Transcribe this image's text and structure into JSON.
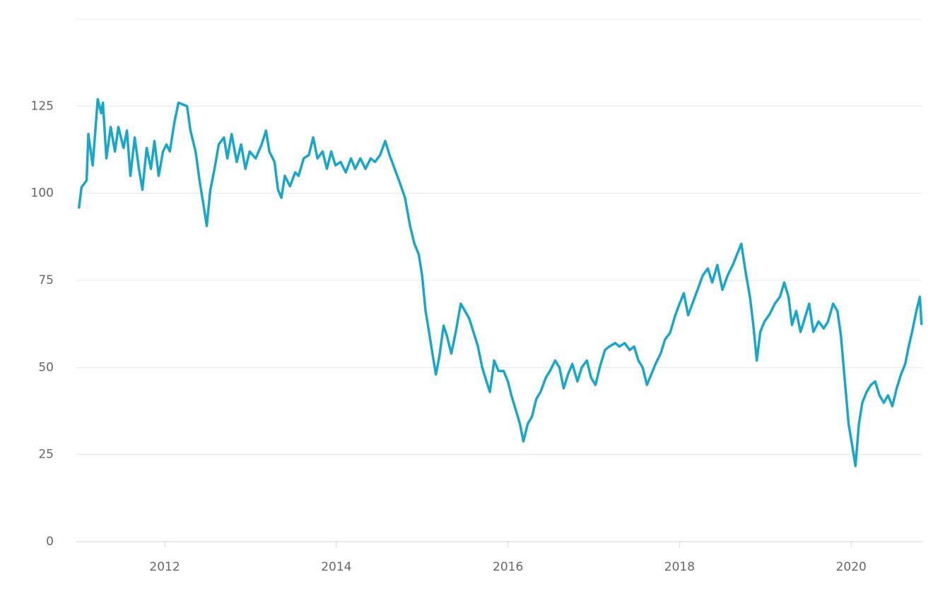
{
  "chart_data": {
    "type": "line",
    "color": "#1aa6c9",
    "grid": true,
    "xlim": [
      2010.97,
      2020.83
    ],
    "xticks": [
      2012,
      2014,
      2016,
      2018,
      2020
    ],
    "ylim": [
      0,
      150
    ],
    "yticks": [
      0,
      25,
      50,
      75,
      100,
      125
    ],
    "x": [
      2011.0,
      2011.03,
      2011.09,
      2011.11,
      2011.16,
      2011.22,
      2011.26,
      2011.28,
      2011.32,
      2011.37,
      2011.42,
      2011.46,
      2011.52,
      2011.56,
      2011.6,
      2011.65,
      2011.7,
      2011.74,
      2011.79,
      2011.84,
      2011.88,
      2011.93,
      2011.98,
      2012.02,
      2012.06,
      2012.11,
      2012.16,
      2012.21,
      2012.26,
      2012.3,
      2012.36,
      2012.41,
      2012.45,
      2012.49,
      2012.53,
      2012.58,
      2012.63,
      2012.69,
      2012.73,
      2012.78,
      2012.84,
      2012.89,
      2012.94,
      2012.99,
      2013.06,
      2013.13,
      2013.18,
      2013.22,
      2013.28,
      2013.32,
      2013.36,
      2013.4,
      2013.46,
      2013.52,
      2013.56,
      2013.62,
      2013.68,
      2013.73,
      2013.78,
      2013.84,
      2013.89,
      2013.94,
      2013.99,
      2014.05,
      2014.11,
      2014.17,
      2014.22,
      2014.28,
      2014.34,
      2014.4,
      2014.45,
      2014.51,
      2014.57,
      2014.62,
      2014.68,
      2014.74,
      2014.8,
      2014.86,
      2014.91,
      2014.96,
      2015.0,
      2015.04,
      2015.08,
      2015.12,
      2015.16,
      2015.2,
      2015.25,
      2015.29,
      2015.34,
      2015.39,
      2015.45,
      2015.5,
      2015.55,
      2015.6,
      2015.65,
      2015.7,
      2015.75,
      2015.79,
      2015.84,
      2015.89,
      2015.95,
      2016.0,
      2016.04,
      2016.09,
      2016.14,
      2016.18,
      2016.23,
      2016.28,
      2016.33,
      2016.38,
      2016.44,
      2016.49,
      2016.55,
      2016.6,
      2016.65,
      2016.7,
      2016.75,
      2016.81,
      2016.86,
      2016.92,
      2016.97,
      2017.02,
      2017.07,
      2017.13,
      2017.18,
      2017.25,
      2017.3,
      2017.36,
      2017.42,
      2017.47,
      2017.52,
      2017.57,
      2017.62,
      2017.67,
      2017.72,
      2017.78,
      2017.83,
      2017.89,
      2017.95,
      2018.0,
      2018.05,
      2018.1,
      2018.15,
      2018.21,
      2018.27,
      2018.33,
      2018.38,
      2018.44,
      2018.5,
      2018.56,
      2018.62,
      2018.67,
      2018.72,
      2018.77,
      2018.82,
      2018.86,
      2018.9,
      2018.94,
      2018.99,
      2019.05,
      2019.11,
      2019.17,
      2019.22,
      2019.27,
      2019.31,
      2019.36,
      2019.41,
      2019.46,
      2019.51,
      2019.56,
      2019.62,
      2019.68,
      2019.73,
      2019.79,
      2019.84,
      2019.88,
      2019.92,
      2019.97,
      2020.01,
      2020.05,
      2020.09,
      2020.13,
      2020.18,
      2020.23,
      2020.28,
      2020.33,
      2020.38,
      2020.43,
      2020.48,
      2020.53,
      2020.58,
      2020.63,
      2020.67,
      2020.71,
      2020.76,
      2020.8,
      2020.82
    ],
    "values": [
      95.6,
      101.7,
      103.7,
      117,
      108,
      127,
      123,
      126,
      110,
      119,
      112,
      119,
      113,
      118,
      105,
      116,
      107,
      101,
      113,
      107,
      115,
      105,
      112,
      114,
      112,
      120,
      126,
      125.5,
      125,
      118,
      112,
      103,
      97,
      90.6,
      100.7,
      107,
      114,
      116,
      110,
      117,
      109,
      114,
      107,
      112,
      110,
      114,
      118,
      112,
      109,
      101,
      98.7,
      105,
      102,
      106,
      105,
      110,
      111,
      116,
      110,
      112,
      107,
      112,
      108,
      109,
      106,
      110,
      107,
      110,
      107,
      110,
      109,
      111,
      115,
      111,
      107,
      103,
      98.7,
      90.6,
      85.5,
      82.5,
      76.4,
      66.2,
      60.2,
      54,
      48,
      53,
      62,
      59,
      54,
      60,
      68.3,
      66.2,
      64,
      60,
      56,
      50,
      46,
      43,
      52,
      49,
      49,
      46,
      42,
      37.9,
      33.8,
      28.8,
      33.8,
      35.9,
      40.9,
      43,
      47,
      49,
      52,
      50,
      44,
      48,
      51,
      46,
      50,
      52,
      47,
      45,
      50,
      55,
      56,
      57,
      56,
      57,
      55,
      56,
      52,
      50,
      45,
      48,
      51,
      54,
      58,
      60,
      65,
      68.3,
      71.3,
      65,
      68.3,
      72.3,
      76.4,
      78.4,
      74.4,
      79.4,
      72.3,
      76.4,
      79.4,
      82.5,
      85.5,
      77.4,
      70.3,
      62.2,
      52,
      60.2,
      63.2,
      65.3,
      68.3,
      70.3,
      74.4,
      70.3,
      62.2,
      66.2,
      60.2,
      64.2,
      68.3,
      60.2,
      63.2,
      61.2,
      63.2,
      68.3,
      66.2,
      59.2,
      48,
      33.8,
      27.8,
      21.7,
      33.8,
      39.9,
      43,
      45,
      46,
      42,
      39.9,
      42,
      38.9,
      44,
      48,
      51,
      56,
      60.2,
      66.2,
      70.3,
      62.2
    ]
  }
}
